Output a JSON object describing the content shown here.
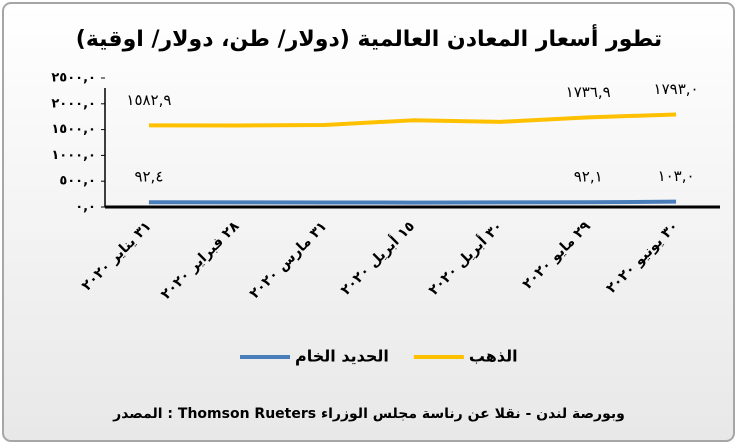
{
  "chart_data": {
    "type": "line",
    "title": "تطور أسعار المعادن العالمية (دولار/ طن، دولار/ اوقية)",
    "categories": [
      "٣١ يناير ٢٠٢٠",
      "٢٨ فبراير ٢٠٢٠",
      "٣١ مارس ٢٠٢٠",
      "١٥ أبريل ٢٠٢٠",
      "٣٠ أبريل ٢٠٢٠",
      "٢٩ مايو ٢٠٢٠",
      "٣٠ يونيو ٢٠٢٠"
    ],
    "series": [
      {
        "name": "الحديد الخام",
        "color": "#4a7ebb",
        "values": [
          92.4,
          90,
          88,
          85,
          90,
          92.1,
          103.0
        ],
        "value_labels": [
          "٩٢,٤",
          null,
          null,
          null,
          null,
          "٩٢,١",
          "١٠٣,٠"
        ]
      },
      {
        "name": "الذهب",
        "color": "#ffc000",
        "values": [
          1582.9,
          1580,
          1590,
          1680,
          1650,
          1736.9,
          1793.0
        ],
        "value_labels": [
          "١٥٨٢,٩",
          null,
          null,
          null,
          null,
          "١٧٣٦,٩",
          "١٧٩٣,٠"
        ]
      }
    ],
    "ylim": [
      0,
      2500
    ],
    "yticks": [
      {
        "value": 0,
        "label": "٠,٠"
      },
      {
        "value": 500,
        "label": "٥٠٠,٠"
      },
      {
        "value": 1000,
        "label": "١٠٠٠,٠"
      },
      {
        "value": 1500,
        "label": "١٥٠٠,٠"
      },
      {
        "value": 2000,
        "label": "٢٠٠٠,٠"
      },
      {
        "value": 2500,
        "label": "٢٥٠٠,٠"
      }
    ],
    "legend": "bottom",
    "source": "المصدر : Thomson Rueters وبورصة لندن - نقلا عن رناسة مجلس الوزراء"
  }
}
